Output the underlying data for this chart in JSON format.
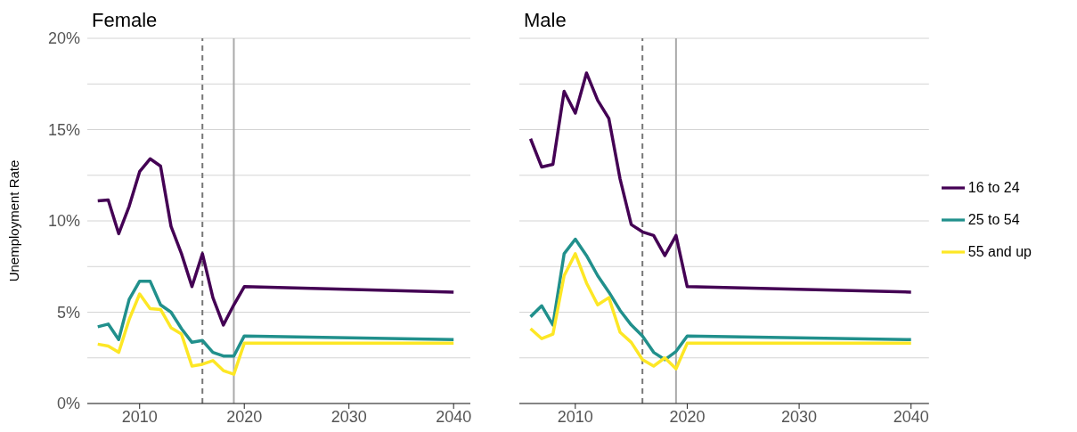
{
  "chart_data": [
    {
      "type": "line",
      "title": "Female",
      "ylabel": "Unemployment Rate",
      "x": [
        2006,
        2007,
        2008,
        2009,
        2010,
        2011,
        2012,
        2013,
        2014,
        2015,
        2016,
        2017,
        2018,
        2019,
        2020,
        2040
      ],
      "series": [
        {
          "color": "#440154",
          "values": [
            11.1,
            11.15,
            9.3,
            10.8,
            12.7,
            13.4,
            13.0,
            9.7,
            8.2,
            6.4,
            8.2,
            5.8,
            4.3,
            5.4,
            6.4,
            6.1
          ]
        },
        {
          "color": "#21908c",
          "values": [
            4.2,
            4.35,
            3.5,
            5.7,
            6.7,
            6.7,
            5.4,
            5.0,
            4.1,
            3.35,
            3.45,
            2.8,
            2.6,
            2.6,
            3.7,
            3.5
          ]
        },
        {
          "color": "#fde725",
          "values": [
            3.25,
            3.15,
            2.8,
            4.6,
            6.0,
            5.2,
            5.15,
            4.15,
            3.8,
            2.05,
            2.15,
            2.35,
            1.8,
            1.6,
            3.3,
            3.3
          ]
        }
      ],
      "xlim": [
        2005,
        2041.6
      ],
      "xticks": [
        2010,
        2020,
        2030,
        2040
      ],
      "ylim": [
        0,
        20
      ],
      "yticks": [
        {
          "value": 0,
          "label": "0%"
        },
        {
          "value": 2.5,
          "label": null
        },
        {
          "value": 5,
          "label": "5%"
        },
        {
          "value": 7.5,
          "label": null
        },
        {
          "value": 10,
          "label": "10%"
        },
        {
          "value": 12.5,
          "label": null
        },
        {
          "value": 15,
          "label": "15%"
        },
        {
          "value": 17.5,
          "label": null
        },
        {
          "value": 20,
          "label": "20%"
        }
      ],
      "grid": "y",
      "legend": false,
      "marker": "none",
      "line_style": "solid",
      "ref_lines": [
        {
          "axis": "x",
          "value": 2016,
          "label": null,
          "color": "#777777",
          "line_style": "dashed"
        },
        {
          "axis": "x",
          "value": 2019,
          "label": null,
          "color": "#aaaaaa",
          "line_style": "solid"
        }
      ]
    },
    {
      "type": "line",
      "title": "Male",
      "x": [
        2006,
        2007,
        2008,
        2009,
        2010,
        2011,
        2012,
        2013,
        2014,
        2015,
        2016,
        2017,
        2018,
        2019,
        2020,
        2040
      ],
      "series": [
        {
          "name": "16 to 24",
          "color": "#440154",
          "values": [
            14.5,
            12.95,
            13.1,
            17.1,
            15.9,
            18.1,
            16.6,
            15.6,
            12.3,
            9.8,
            9.4,
            9.2,
            8.1,
            9.2,
            6.4,
            6.1
          ]
        },
        {
          "name": "25 to 54",
          "color": "#21908c",
          "values": [
            4.75,
            5.35,
            4.3,
            8.2,
            9.0,
            8.1,
            7.0,
            6.1,
            5.1,
            4.3,
            3.7,
            2.8,
            2.4,
            2.85,
            3.7,
            3.5
          ]
        },
        {
          "name": "55 and up",
          "color": "#fde725",
          "values": [
            4.1,
            3.55,
            3.8,
            7.0,
            8.2,
            6.6,
            5.4,
            5.8,
            3.9,
            3.35,
            2.4,
            2.05,
            2.5,
            1.9,
            3.3,
            3.3
          ]
        }
      ],
      "xlim": [
        2005,
        2041.6
      ],
      "xticks": [
        2010,
        2020,
        2030,
        2040
      ],
      "ylim": [
        0,
        20
      ],
      "yticks": [
        {
          "value": 0,
          "label": null
        },
        {
          "value": 2.5,
          "label": null
        },
        {
          "value": 5,
          "label": null
        },
        {
          "value": 7.5,
          "label": null
        },
        {
          "value": 10,
          "label": null
        },
        {
          "value": 12.5,
          "label": null
        },
        {
          "value": 15,
          "label": null
        },
        {
          "value": 17.5,
          "label": null
        },
        {
          "value": 20,
          "label": null
        }
      ],
      "tick_labels": "x",
      "grid": "y",
      "legend": "right",
      "marker": "none",
      "line_style": "solid",
      "ref_lines": [
        {
          "axis": "x",
          "value": 2016,
          "label": null,
          "color": "#777777",
          "line_style": "dashed"
        },
        {
          "axis": "x",
          "value": 2019,
          "label": null,
          "color": "#aaaaaa",
          "line_style": "solid"
        }
      ]
    }
  ]
}
